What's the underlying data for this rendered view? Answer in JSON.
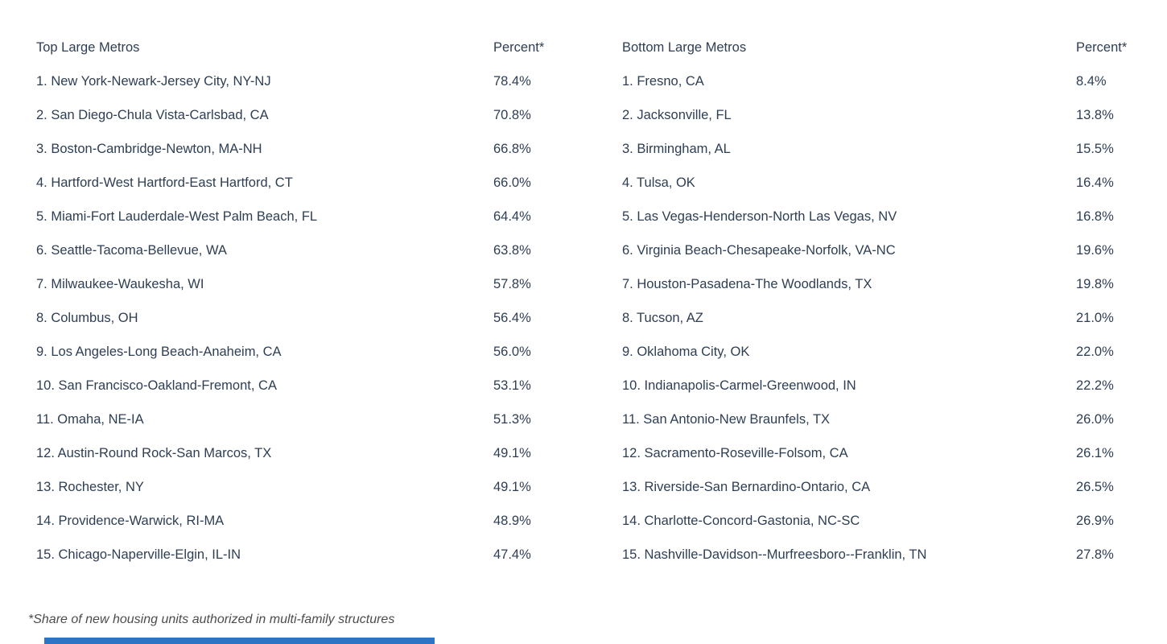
{
  "colors": {
    "text": "#2e3e53",
    "footnote_text": "#4c4c4c",
    "accent_bar": "#2e74c4",
    "background": "#ffffff"
  },
  "footnote": "*Share of new housing units authorized in multi-family structures",
  "tables": [
    {
      "title": "Top Large Metros",
      "percent_header": "Percent*",
      "rows": [
        {
          "label": "1. New York-Newark-Jersey City, NY-NJ",
          "percent": "78.4%"
        },
        {
          "label": "2. San Diego-Chula Vista-Carlsbad, CA",
          "percent": "70.8%"
        },
        {
          "label": "3. Boston-Cambridge-Newton, MA-NH",
          "percent": "66.8%"
        },
        {
          "label": "4. Hartford-West Hartford-East Hartford, CT",
          "percent": "66.0%"
        },
        {
          "label": "5. Miami-Fort Lauderdale-West Palm Beach, FL",
          "percent": "64.4%"
        },
        {
          "label": "6. Seattle-Tacoma-Bellevue, WA",
          "percent": "63.8%"
        },
        {
          "label": "7. Milwaukee-Waukesha, WI",
          "percent": "57.8%"
        },
        {
          "label": "8. Columbus, OH",
          "percent": "56.4%"
        },
        {
          "label": "9. Los Angeles-Long Beach-Anaheim, CA",
          "percent": "56.0%"
        },
        {
          "label": "10. San Francisco-Oakland-Fremont, CA",
          "percent": "53.1%"
        },
        {
          "label": "11. Omaha, NE-IA",
          "percent": "51.3%"
        },
        {
          "label": "12. Austin-Round Rock-San Marcos, TX",
          "percent": "49.1%"
        },
        {
          "label": "13. Rochester, NY",
          "percent": "49.1%"
        },
        {
          "label": "14. Providence-Warwick, RI-MA",
          "percent": "48.9%"
        },
        {
          "label": "15. Chicago-Naperville-Elgin, IL-IN",
          "percent": "47.4%"
        }
      ]
    },
    {
      "title": "Bottom Large Metros",
      "percent_header": "Percent*",
      "rows": [
        {
          "label": "1. Fresno, CA",
          "percent": "8.4%"
        },
        {
          "label": "2. Jacksonville, FL",
          "percent": "13.8%"
        },
        {
          "label": "3. Birmingham, AL",
          "percent": "15.5%"
        },
        {
          "label": "4. Tulsa, OK",
          "percent": "16.4%"
        },
        {
          "label": "5. Las Vegas-Henderson-North Las Vegas, NV",
          "percent": "16.8%"
        },
        {
          "label": "6. Virginia Beach-Chesapeake-Norfolk, VA-NC",
          "percent": "19.6%"
        },
        {
          "label": "7. Houston-Pasadena-The Woodlands, TX",
          "percent": "19.8%"
        },
        {
          "label": "8. Tucson, AZ",
          "percent": "21.0%"
        },
        {
          "label": "9. Oklahoma City, OK",
          "percent": "22.0%"
        },
        {
          "label": "10. Indianapolis-Carmel-Greenwood, IN",
          "percent": "22.2%"
        },
        {
          "label": "11. San Antonio-New Braunfels, TX",
          "percent": "26.0%"
        },
        {
          "label": "12. Sacramento-Roseville-Folsom, CA",
          "percent": "26.1%"
        },
        {
          "label": "13. Riverside-San Bernardino-Ontario, CA",
          "percent": "26.5%"
        },
        {
          "label": "14. Charlotte-Concord-Gastonia, NC-SC",
          "percent": "26.9%"
        },
        {
          "label": "15. Nashville-Davidson--Murfreesboro--Franklin, TN",
          "percent": "27.8%"
        }
      ]
    }
  ],
  "chart_data": {
    "type": "table",
    "title": "",
    "footnote": "*Share of new housing units authorized in multi-family structures",
    "tables": [
      {
        "name": "Top Large Metros",
        "columns": [
          "Metro",
          "Percent*"
        ],
        "rows": [
          [
            "New York-Newark-Jersey City, NY-NJ",
            78.4
          ],
          [
            "San Diego-Chula Vista-Carlsbad, CA",
            70.8
          ],
          [
            "Boston-Cambridge-Newton, MA-NH",
            66.8
          ],
          [
            "Hartford-West Hartford-East Hartford, CT",
            66.0
          ],
          [
            "Miami-Fort Lauderdale-West Palm Beach, FL",
            64.4
          ],
          [
            "Seattle-Tacoma-Bellevue, WA",
            63.8
          ],
          [
            "Milwaukee-Waukesha, WI",
            57.8
          ],
          [
            "Columbus, OH",
            56.4
          ],
          [
            "Los Angeles-Long Beach-Anaheim, CA",
            56.0
          ],
          [
            "San Francisco-Oakland-Fremont, CA",
            53.1
          ],
          [
            "Omaha, NE-IA",
            51.3
          ],
          [
            "Austin-Round Rock-San Marcos, TX",
            49.1
          ],
          [
            "Rochester, NY",
            49.1
          ],
          [
            "Providence-Warwick, RI-MA",
            48.9
          ],
          [
            "Chicago-Naperville-Elgin, IL-IN",
            47.4
          ]
        ]
      },
      {
        "name": "Bottom Large Metros",
        "columns": [
          "Metro",
          "Percent*"
        ],
        "rows": [
          [
            "Fresno, CA",
            8.4
          ],
          [
            "Jacksonville, FL",
            13.8
          ],
          [
            "Birmingham, AL",
            15.5
          ],
          [
            "Tulsa, OK",
            16.4
          ],
          [
            "Las Vegas-Henderson-North Las Vegas, NV",
            16.8
          ],
          [
            "Virginia Beach-Chesapeake-Norfolk, VA-NC",
            19.6
          ],
          [
            "Houston-Pasadena-The Woodlands, TX",
            19.8
          ],
          [
            "Tucson, AZ",
            21.0
          ],
          [
            "Oklahoma City, OK",
            22.0
          ],
          [
            "Indianapolis-Carmel-Greenwood, IN",
            22.2
          ],
          [
            "San Antonio-New Braunfels, TX",
            26.0
          ],
          [
            "Sacramento-Roseville-Folsom, CA",
            26.1
          ],
          [
            "Riverside-San Bernardino-Ontario, CA",
            26.5
          ],
          [
            "Charlotte-Concord-Gastonia, NC-SC",
            26.9
          ],
          [
            "Nashville-Davidson--Murfreesboro--Franklin, TN",
            27.8
          ]
        ]
      }
    ]
  }
}
